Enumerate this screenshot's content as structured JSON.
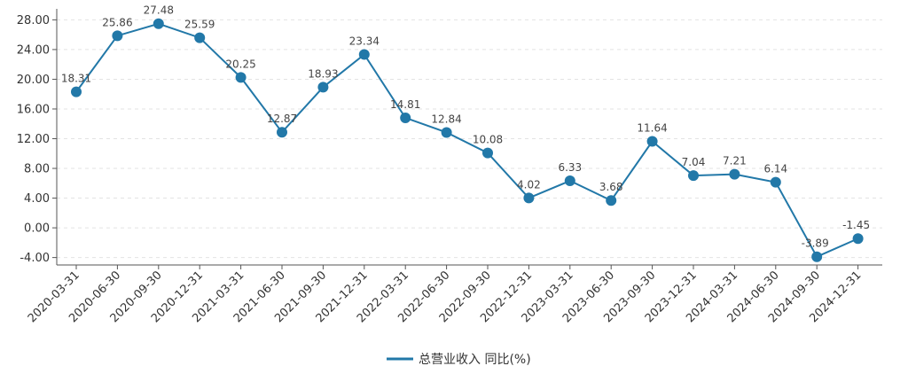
{
  "chart_data": {
    "type": "line",
    "title": "",
    "xlabel": "",
    "ylabel": "",
    "categories": [
      "2020-03-31",
      "2020-06-30",
      "2020-09-30",
      "2020-12-31",
      "2021-03-31",
      "2021-06-30",
      "2021-09-30",
      "2021-12-31",
      "2022-03-31",
      "2022-06-30",
      "2022-09-30",
      "2022-12-31",
      "2023-03-31",
      "2023-06-30",
      "2023-09-30",
      "2023-12-31",
      "2024-03-31",
      "2024-06-30",
      "2024-09-30",
      "2024-12-31"
    ],
    "series": [
      {
        "name": "总营业收入 同比(%)",
        "values": [
          18.31,
          25.86,
          27.48,
          25.59,
          20.25,
          12.87,
          18.93,
          23.34,
          14.81,
          12.84,
          10.08,
          4.02,
          6.33,
          3.68,
          11.64,
          7.04,
          7.21,
          6.14,
          -3.89,
          -1.45
        ],
        "labels": [
          "18.31",
          "25.86",
          "27.48",
          "25.59",
          "20.25",
          "12.87",
          "18.93",
          "23.34",
          "14.81",
          "12.84",
          "10.08",
          "4.02",
          "6.33",
          "3.68",
          "11.64",
          "7.04",
          "7.21",
          "6.14",
          "-3.89",
          "-1.45"
        ],
        "color": "#2278a8"
      }
    ],
    "yticks": [
      "-4.00",
      "0.00",
      "4.00",
      "8.00",
      "12.00",
      "16.00",
      "20.00",
      "24.00",
      "28.00"
    ],
    "ylim": [
      -5,
      29
    ],
    "grid": true,
    "legend": "bottom-center"
  }
}
